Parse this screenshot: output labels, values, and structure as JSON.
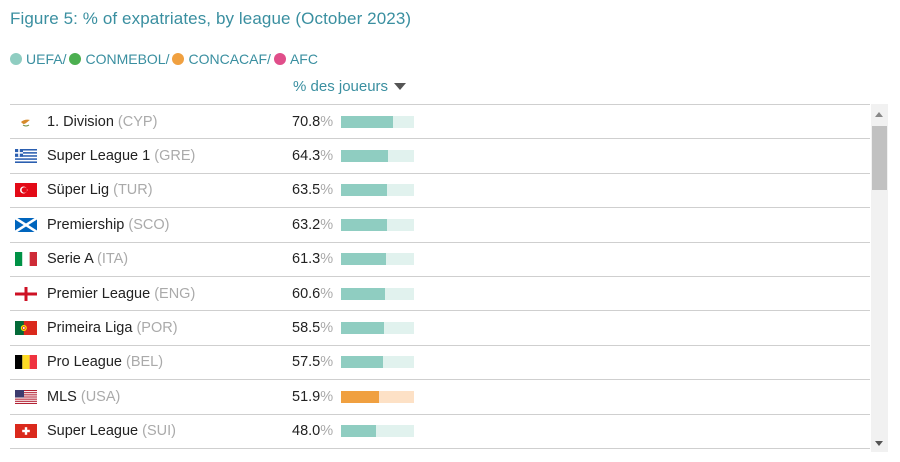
{
  "title": "Figure 5: % of expatriates, by league (October 2023)",
  "legend": [
    {
      "label": "UEFA/",
      "color": "#8fcdc1"
    },
    {
      "label": "CONMEBOL/",
      "color": "#4caf50"
    },
    {
      "label": "CONCACAF/",
      "color": "#f0a040"
    },
    {
      "label": "AFC",
      "color": "#e04e8a"
    }
  ],
  "column_header": "% des joueurs",
  "chart_data": {
    "type": "bar",
    "ylabel": "% des joueurs",
    "ylim": [
      0,
      100
    ],
    "categories": [
      "1. Division",
      "Super League 1",
      "Süper Lig",
      "Premiership",
      "Serie A",
      "Premier League",
      "Primeira Liga",
      "Pro League",
      "MLS",
      "Super League"
    ],
    "values": [
      70.8,
      64.3,
      63.5,
      63.2,
      61.3,
      60.6,
      58.5,
      57.5,
      51.9,
      48.0
    ],
    "rows": [
      {
        "league": "1. Division",
        "country": "(CYP)",
        "value": 70.8,
        "value_text": "70.8",
        "flag": "cyprus-flag",
        "confederation": "UEFA"
      },
      {
        "league": "Super League 1",
        "country": "(GRE)",
        "value": 64.3,
        "value_text": "64.3",
        "flag": "greece-flag",
        "confederation": "UEFA"
      },
      {
        "league": "Süper Lig",
        "country": "(TUR)",
        "value": 63.5,
        "value_text": "63.5",
        "flag": "turkey-flag",
        "confederation": "UEFA"
      },
      {
        "league": "Premiership",
        "country": "(SCO)",
        "value": 63.2,
        "value_text": "63.2",
        "flag": "scotland-flag",
        "confederation": "UEFA"
      },
      {
        "league": "Serie A",
        "country": "(ITA)",
        "value": 61.3,
        "value_text": "61.3",
        "flag": "italy-flag",
        "confederation": "UEFA"
      },
      {
        "league": "Premier League",
        "country": "(ENG)",
        "value": 60.6,
        "value_text": "60.6",
        "flag": "england-flag",
        "confederation": "UEFA"
      },
      {
        "league": "Primeira Liga",
        "country": "(POR)",
        "value": 58.5,
        "value_text": "58.5",
        "flag": "portugal-flag",
        "confederation": "UEFA"
      },
      {
        "league": "Pro League",
        "country": "(BEL)",
        "value": 57.5,
        "value_text": "57.5",
        "flag": "belgium-flag",
        "confederation": "UEFA"
      },
      {
        "league": "MLS",
        "country": "(USA)",
        "value": 51.9,
        "value_text": "51.9",
        "flag": "usa-flag",
        "confederation": "CONCACAF"
      },
      {
        "league": "Super League",
        "country": "(SUI)",
        "value": 48.0,
        "value_text": "48.0",
        "flag": "switzerland-flag",
        "confederation": "UEFA"
      }
    ]
  },
  "colors": {
    "UEFA_fill": "#8fcdc1",
    "UEFA_track": "#e1f2ee",
    "CONCACAF_fill": "#f0a040",
    "CONCACAF_track": "#fde1c6"
  },
  "pct_sign": "%"
}
